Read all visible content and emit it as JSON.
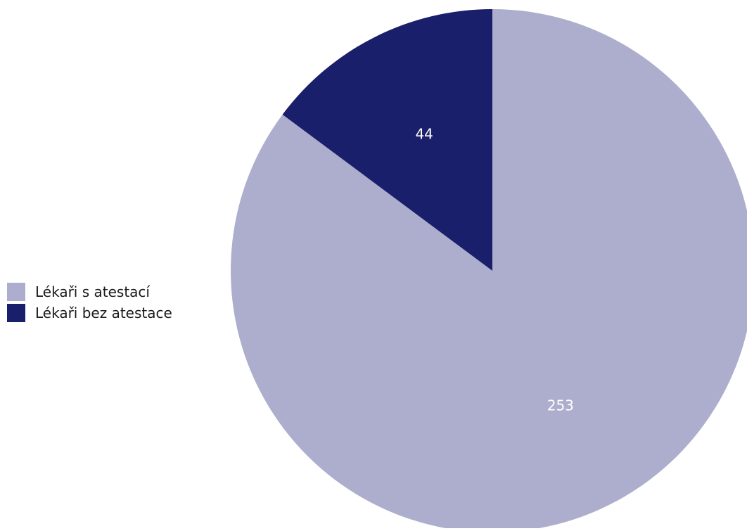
{
  "chart_data": {
    "type": "pie",
    "start_angle": "12 o'clock, clockwise",
    "slices": [
      {
        "label": "Lékaři s atestací",
        "value": 253,
        "value_label": "253",
        "color": "#adaecd"
      },
      {
        "label": "Lékaři bez atestace",
        "value": 44,
        "value_label": "44",
        "color": "#191f6a"
      }
    ],
    "legend": {
      "placement": "left",
      "items": [
        {
          "label": "Lékaři s atestací",
          "color": "#adaecd"
        },
        {
          "label": "Lékaři bez atestace",
          "color": "#191f6a"
        }
      ]
    },
    "colors": {
      "background": "#ffffff",
      "data_label": "#ffffff"
    }
  }
}
